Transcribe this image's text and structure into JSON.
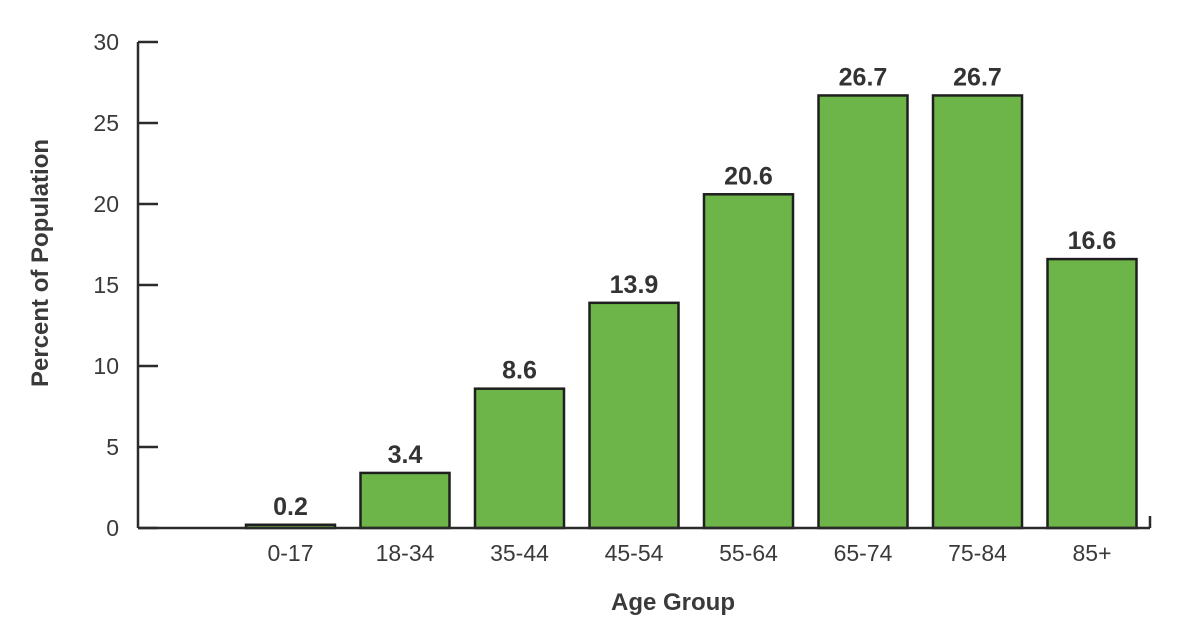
{
  "chart_data": {
    "type": "bar",
    "categories": [
      "0-17",
      "18-34",
      "35-44",
      "45-54",
      "55-64",
      "65-74",
      "75-84",
      "85+"
    ],
    "values": [
      0.2,
      3.4,
      8.6,
      13.9,
      20.6,
      26.7,
      26.7,
      16.6
    ],
    "value_labels": [
      "0.2",
      "3.4",
      "8.6",
      "13.9",
      "20.6",
      "26.7",
      "26.7",
      "16.6"
    ],
    "title": "",
    "xlabel": "Age Group",
    "ylabel": "Percent of Population",
    "ylim": [
      0,
      30
    ],
    "yticks": [
      "0",
      "5",
      "10",
      "15",
      "20",
      "25",
      "30"
    ],
    "grid": false,
    "legend": "none",
    "colors": {
      "bar": "#6db548",
      "axis": "#2b2b2b"
    }
  }
}
